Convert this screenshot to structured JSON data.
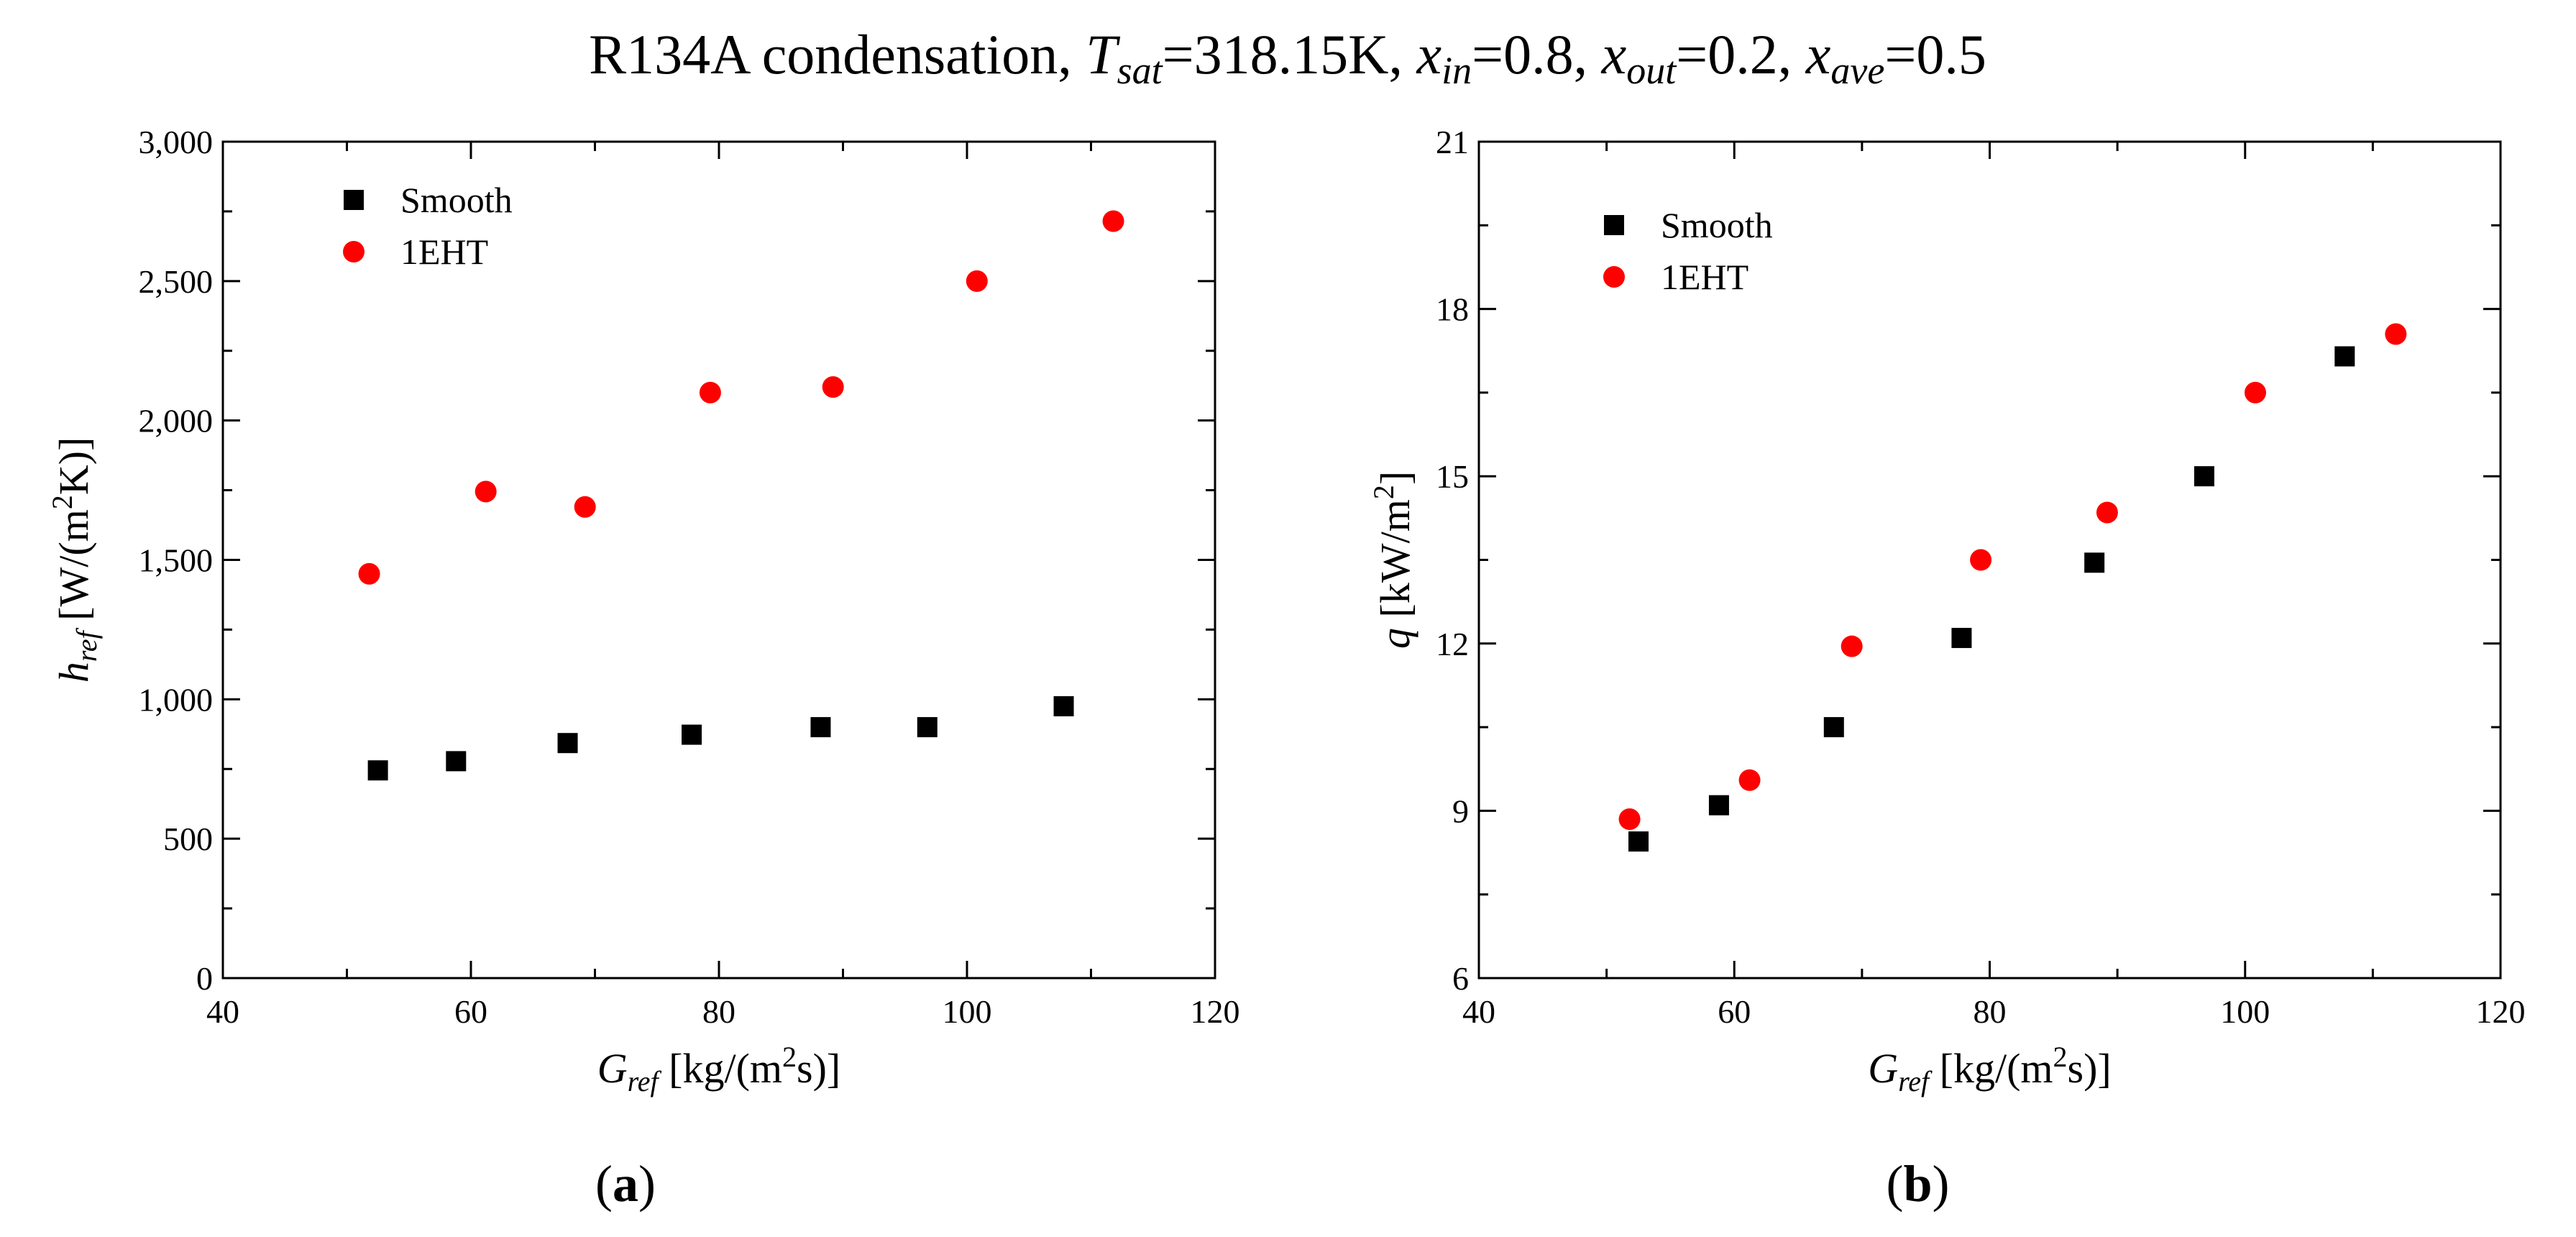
{
  "figure": {
    "title_main": "R134A condensation, ",
    "title_parts": [
      {
        "sym": "T",
        "sub": "sat",
        "val": "=318.15K"
      },
      {
        "sym": "x",
        "sub": "in",
        "val": "=0.8"
      },
      {
        "sym": "x",
        "sub": "out",
        "val": "=0.2"
      },
      {
        "sym": "x",
        "sub": "ave",
        "val": "=0.5"
      }
    ],
    "title_sep": ", "
  },
  "chart_data": [
    {
      "type": "scatter",
      "panel_label": "a",
      "xlabel": {
        "sym": "G",
        "sub": "ref",
        "unit_pre": " [kg/(m",
        "sup": "2",
        "unit_post": "s)]"
      },
      "ylabel": {
        "sym": "h",
        "sub": "ref",
        "unit_pre": " [W/(m",
        "sup": "2",
        "unit_post": "K)]"
      },
      "xlim": [
        40,
        120
      ],
      "ylim": [
        0,
        3000
      ],
      "xticks": [
        40,
        60,
        80,
        100,
        120
      ],
      "xtick_labels": [
        "40",
        "60",
        "80",
        "100",
        "120"
      ],
      "yticks": [
        0,
        500,
        1000,
        1500,
        2000,
        2500,
        3000
      ],
      "ytick_labels": [
        "0",
        "500",
        "1,000",
        "1,500",
        "2,000",
        "2,500",
        "3,000"
      ],
      "grid": false,
      "legend": "top-left",
      "series": [
        {
          "name": "Smooth",
          "marker": "square",
          "color": "#000000",
          "x": [
            52.5,
            58.8,
            67.8,
            77.8,
            88.2,
            96.8,
            107.8
          ],
          "y": [
            745,
            778,
            843,
            873,
            900,
            900,
            975
          ]
        },
        {
          "name": "1EHT",
          "marker": "circle",
          "color": "#ff0000",
          "x": [
            51.8,
            61.2,
            69.2,
            79.3,
            89.2,
            100.8,
            111.8
          ],
          "y": [
            1450,
            1745,
            1690,
            2100,
            2120,
            2500,
            2715
          ]
        }
      ]
    },
    {
      "type": "scatter",
      "panel_label": "b",
      "xlabel": {
        "sym": "G",
        "sub": "ref",
        "unit_pre": " [kg/(m",
        "sup": "2",
        "unit_post": "s)]"
      },
      "ylabel": {
        "sym": "q",
        "sub": "",
        "unit_pre": " [kW/m",
        "sup": "2",
        "unit_post": "]"
      },
      "xlim": [
        40,
        120
      ],
      "ylim": [
        6,
        21
      ],
      "xticks": [
        40,
        60,
        80,
        100,
        120
      ],
      "xtick_labels": [
        "40",
        "60",
        "80",
        "100",
        "120"
      ],
      "yticks": [
        6,
        9,
        12,
        15,
        18,
        21
      ],
      "ytick_labels": [
        "6",
        "9",
        "12",
        "15",
        "18",
        "21"
      ],
      "grid": false,
      "legend": "top-left",
      "series": [
        {
          "name": "Smooth",
          "marker": "square",
          "color": "#000000",
          "x": [
            52.5,
            58.8,
            67.8,
            77.8,
            88.2,
            96.8,
            107.8
          ],
          "y": [
            8.45,
            9.1,
            10.5,
            12.1,
            13.45,
            15.0,
            17.15
          ]
        },
        {
          "name": "1EHT",
          "marker": "circle",
          "color": "#ff0000",
          "x": [
            51.8,
            61.2,
            69.2,
            79.3,
            89.2,
            100.8,
            111.8
          ],
          "y": [
            8.85,
            9.55,
            11.95,
            13.5,
            14.35,
            16.5,
            17.55
          ]
        }
      ]
    }
  ]
}
